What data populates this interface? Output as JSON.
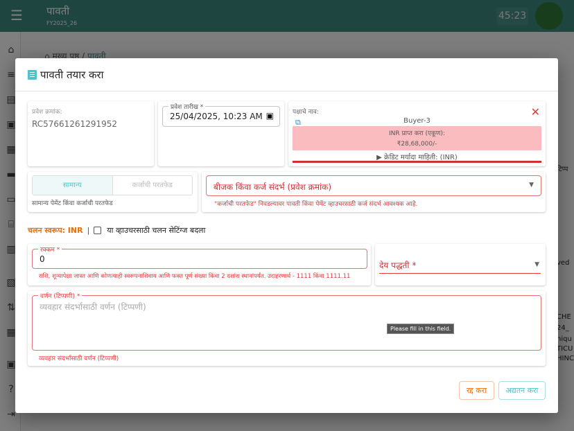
{
  "header": {
    "title": "पावती",
    "fy": "FY2025_26",
    "timer": "45:23",
    "menu_icon": "menu-icon"
  },
  "breadcrumb": {
    "home": "मख्य पृष्ठ",
    "separator": "/",
    "current": "पावती"
  },
  "background_fragments": [
    "टिप्प",
    "ved",
    "CHE",
    "24_",
    "niqu",
    "TICU",
    "HINC"
  ],
  "dialog": {
    "title": "पावती तयार करा",
    "entry_no": {
      "label": "प्रवेश क्रमांक:",
      "value": "RC57661261291952"
    },
    "entry_date": {
      "label": "प्रवेश तारीख *",
      "value": "25/04/2025, 10:23 AM"
    },
    "party": {
      "label": "पक्षाचे नाव:",
      "name": "Buyer-3",
      "receivable_label": "INR प्राप्त करा (एकूण):",
      "receivable_value": "₹28,68,000/-",
      "credit_info": "▶ क्रेडिट मर्यादा माहिती: (INR)"
    },
    "type_toggle": {
      "options": [
        "सामान्य",
        "कर्जाची परतफेड"
      ],
      "selected": "सामान्य",
      "helper": "सामान्य पेमेंट किंवा कर्जाची परतफेड"
    },
    "reference": {
      "placeholder": "बीजक किंवा कर्ज संदर्भ (प्रवेश क्रमांक)",
      "helper": "\"कर्जाची परतफेड\" निवडल्यावर पावती किंवा पेमेंट व्हाउचरसाठी कर्ज संदर्भ आवश्यक आहे."
    },
    "currency": {
      "label": "चलन स्वरूप: INR",
      "separator": "|",
      "checkbox_label": "या व्हाउचरसाठी चलन सेटिंग्ज बदला",
      "checked": false
    },
    "amount": {
      "label": "रक्कम *",
      "value": "0",
      "helper": "राशि, शून्यापेक्षा जास्त आणि कोणत्याही स्वरूपनाशिवाय आणि फक्त पूर्ण संख्या किंवा 2 दशांश स्थानांपर्यंत. उदाहरणार्थ - 1111 किंवा 1111.11"
    },
    "payment_method": {
      "label": "देय पद्धती *"
    },
    "description": {
      "label": "वर्णन (टिप्पणी) *",
      "placeholder": "व्यवहार संदर्भासाठी वर्णन (टिप्पणी)",
      "helper": "व्यवहार संदर्भासाठी वर्णन (टिप्पणी)",
      "tooltip": "Please fill in this field."
    },
    "buttons": {
      "cancel": "रद्द करा",
      "update": "अद्यतन करा"
    }
  },
  "colors": {
    "header": "#3d8a80",
    "accent": "#4fc3c9",
    "error": "#e53935",
    "warning_orange": "#ef6c00",
    "receivable_bg": "#fbbcbf"
  }
}
